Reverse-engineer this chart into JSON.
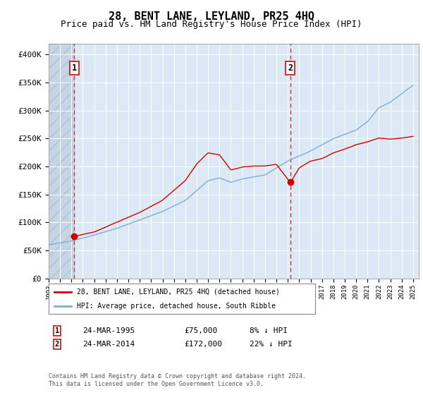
{
  "title": "28, BENT LANE, LEYLAND, PR25 4HQ",
  "subtitle": "Price paid vs. HM Land Registry's House Price Index (HPI)",
  "ylim": [
    0,
    420000
  ],
  "xlim_start": 1993.0,
  "xlim_end": 2025.5,
  "yticks": [
    0,
    50000,
    100000,
    150000,
    200000,
    250000,
    300000,
    350000,
    400000
  ],
  "ytick_labels": [
    "£0",
    "£50K",
    "£100K",
    "£150K",
    "£200K",
    "£250K",
    "£300K",
    "£350K",
    "£400K"
  ],
  "transaction1_date": 1995.23,
  "transaction1_price": 75000,
  "transaction2_date": 2014.23,
  "transaction2_price": 172000,
  "legend_line1": "28, BENT LANE, LEYLAND, PR25 4HQ (detached house)",
  "legend_line2": "HPI: Average price, detached house, South Ribble",
  "table_row1": [
    "1",
    "24-MAR-1995",
    "£75,000",
    "8% ↓ HPI"
  ],
  "table_row2": [
    "2",
    "24-MAR-2014",
    "£172,000",
    "22% ↓ HPI"
  ],
  "footnote": "Contains HM Land Registry data © Crown copyright and database right 2024.\nThis data is licensed under the Open Government Licence v3.0.",
  "hpi_color": "#7bafd4",
  "price_color": "#cc0000",
  "background_plot": "#dce9f5",
  "background_hatch_color": "#c5d5e5",
  "grid_color": "#ffffff",
  "title_fontsize": 11,
  "subtitle_fontsize": 9,
  "hpi_keypoints_x": [
    1993,
    1995,
    1997,
    1999,
    2001,
    2003,
    2005,
    2007,
    2008,
    2009,
    2010,
    2012,
    2014,
    2016,
    2018,
    2020,
    2021,
    2022,
    2023,
    2024,
    2025
  ],
  "hpi_keypoints_y": [
    60000,
    67000,
    78000,
    90000,
    105000,
    120000,
    140000,
    175000,
    180000,
    172000,
    178000,
    185000,
    210000,
    228000,
    250000,
    265000,
    280000,
    305000,
    315000,
    330000,
    345000
  ],
  "price_keypoints_x": [
    1995.23,
    1997,
    1999,
    2001,
    2003,
    2005,
    2006,
    2007,
    2008,
    2009,
    2010,
    2011,
    2012,
    2013,
    2014.23,
    2015,
    2016,
    2017,
    2018,
    2019,
    2020,
    2021,
    2022,
    2023,
    2024,
    2025
  ],
  "price_keypoints_y": [
    75000,
    83000,
    100000,
    118000,
    140000,
    175000,
    205000,
    225000,
    222000,
    195000,
    200000,
    202000,
    202000,
    205000,
    172000,
    198000,
    210000,
    215000,
    225000,
    232000,
    240000,
    245000,
    252000,
    250000,
    252000,
    255000
  ]
}
